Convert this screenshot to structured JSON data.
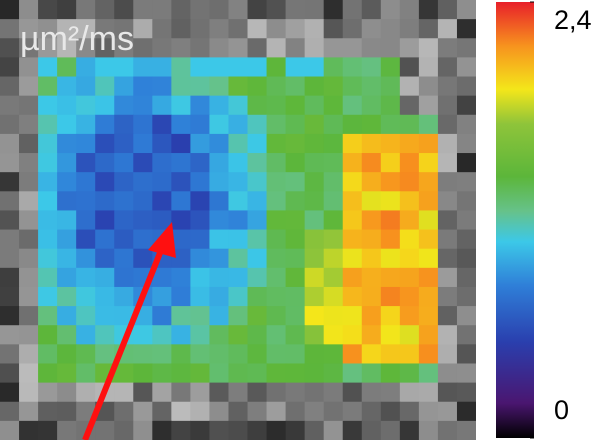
{
  "image": {
    "unit_label": "µm²/ms"
  },
  "colorbar": {
    "range": [
      0,
      2.4
    ],
    "ticks": [
      0,
      {
        "value": 2.4,
        "label": "2,4"
      }
    ]
  }
}
